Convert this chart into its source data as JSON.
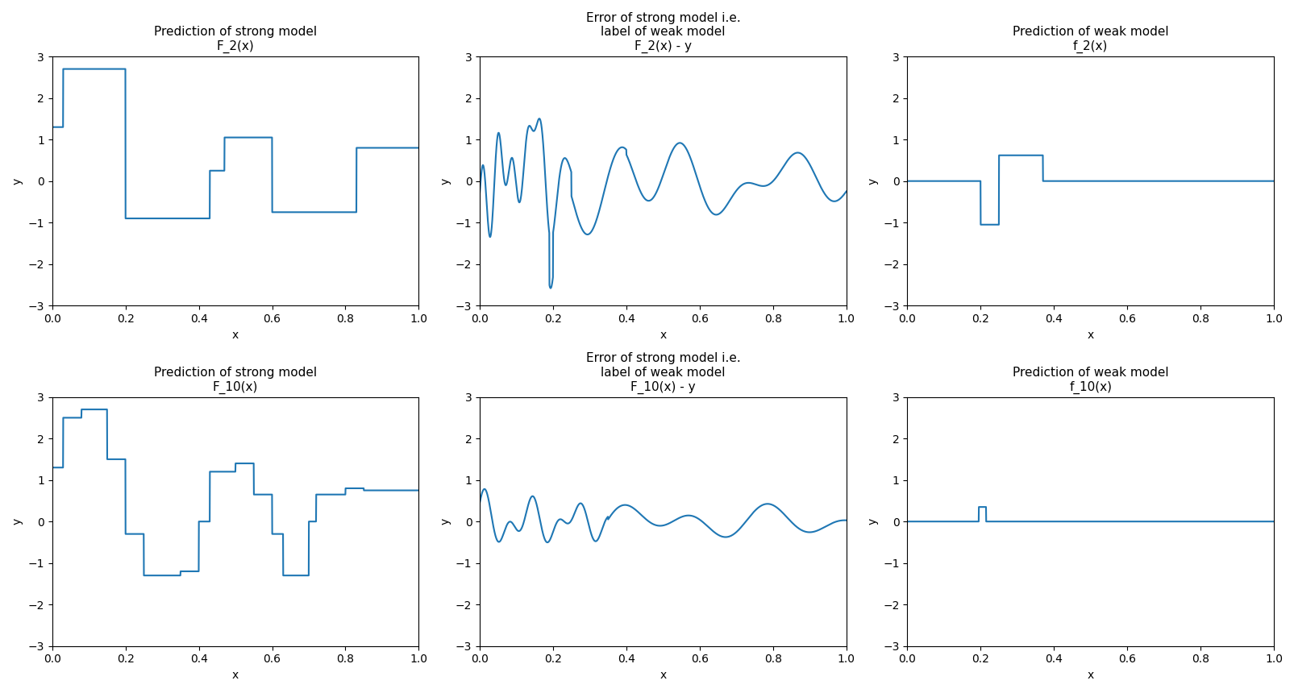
{
  "line_color": "#1f77b4",
  "line_width": 1.5,
  "ylim": [
    -3,
    3
  ],
  "xlim": [
    0.0,
    1.0
  ],
  "xlabel": "x",
  "ylabel": "y",
  "titles": [
    [
      "Prediction of strong model\nF_2(x)",
      "Error of strong model i.e.\nlabel of weak model\nF_2(x) - y",
      "Prediction of weak model\nf_2(x)"
    ],
    [
      "Prediction of strong model\nF_10(x)",
      "Error of strong model i.e.\nlabel of weak model\nF_10(x) - y",
      "Prediction of weak model\nf_10(x)"
    ]
  ]
}
